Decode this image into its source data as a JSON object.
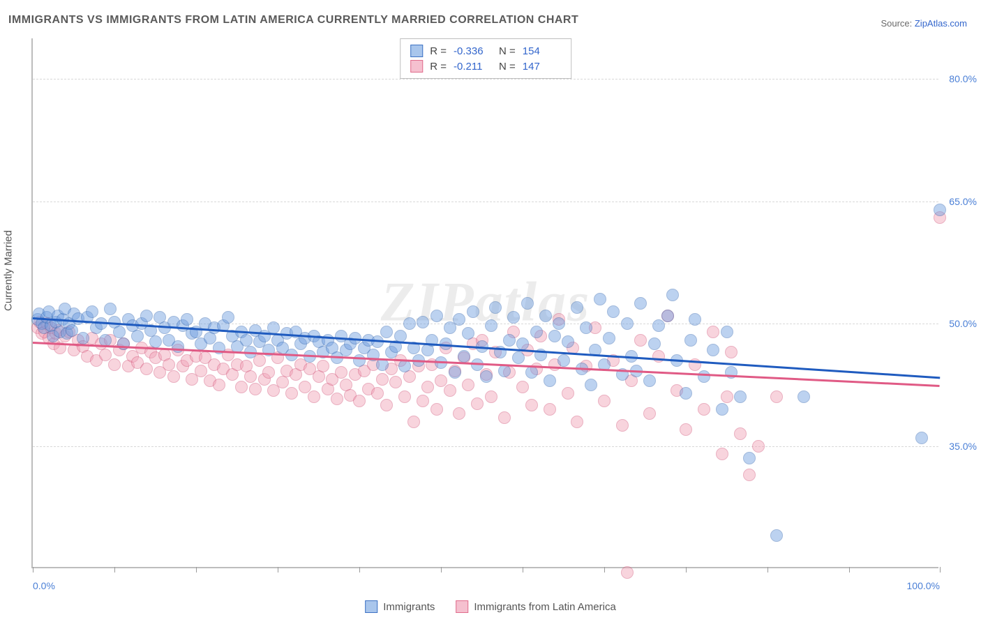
{
  "title": "IMMIGRANTS VS IMMIGRANTS FROM LATIN AMERICA CURRENTLY MARRIED CORRELATION CHART",
  "source_prefix": "Source: ",
  "source_name": "ZipAtlas.com",
  "watermark": "ZIPatlas",
  "yaxis_title": "Currently Married",
  "chart": {
    "type": "scatter",
    "xlim": [
      0,
      100
    ],
    "ylim": [
      20,
      85
    ],
    "xtick_positions": [
      0,
      9,
      18,
      27,
      36,
      45,
      54,
      63,
      72,
      81,
      90,
      100
    ],
    "xtick_labels": {
      "0": "0.0%",
      "100": "100.0%"
    },
    "ytick_positions": [
      35,
      50,
      65,
      80
    ],
    "ytick_labels": {
      "35": "35.0%",
      "50": "50.0%",
      "65": "65.0%",
      "80": "80.0%"
    },
    "grid_color": "#d8d8d8",
    "axis_tick_label_color": "#4a7fd6",
    "background_color": "#ffffff",
    "point_radius": 9,
    "point_opacity": 0.45
  },
  "series": [
    {
      "name": "Immigrants",
      "fill_color": "#6d9de0",
      "stroke_color": "#2e64b0",
      "legend_swatch_fill": "#a9c6ec",
      "legend_swatch_border": "#3d72c4",
      "trend": {
        "x1": 0,
        "y1": 50.8,
        "x2": 100,
        "y2": 43.5,
        "color": "#1f5bbf",
        "width": 2.5
      },
      "R": "-0.336",
      "N": "154",
      "points": [
        [
          0.5,
          50.5
        ],
        [
          0.7,
          51.2
        ],
        [
          1,
          50.0
        ],
        [
          1.2,
          49.5
        ],
        [
          1.5,
          50.8
        ],
        [
          1.8,
          51.5
        ],
        [
          2,
          49.8
        ],
        [
          2.2,
          48.5
        ],
        [
          2.5,
          50.2
        ],
        [
          2.8,
          51.0
        ],
        [
          3,
          49.0
        ],
        [
          3.3,
          50.5
        ],
        [
          3.5,
          51.8
        ],
        [
          3.8,
          48.8
        ],
        [
          4,
          50.0
        ],
        [
          4.3,
          49.2
        ],
        [
          4.5,
          51.2
        ],
        [
          5,
          50.6
        ],
        [
          5.5,
          48.2
        ],
        [
          6,
          50.8
        ],
        [
          6.5,
          51.5
        ],
        [
          7,
          49.5
        ],
        [
          7.5,
          50.0
        ],
        [
          8,
          48.0
        ],
        [
          8.5,
          51.8
        ],
        [
          9,
          50.2
        ],
        [
          9.5,
          49.0
        ],
        [
          10,
          47.5
        ],
        [
          10.5,
          50.5
        ],
        [
          11,
          49.8
        ],
        [
          11.5,
          48.5
        ],
        [
          12,
          50.0
        ],
        [
          12.5,
          51.0
        ],
        [
          13,
          49.2
        ],
        [
          13.5,
          47.8
        ],
        [
          14,
          50.8
        ],
        [
          14.5,
          49.5
        ],
        [
          15,
          48.0
        ],
        [
          15.5,
          50.2
        ],
        [
          16,
          47.2
        ],
        [
          16.5,
          49.8
        ],
        [
          17,
          50.5
        ],
        [
          17.5,
          48.8
        ],
        [
          18,
          49.0
        ],
        [
          18.5,
          47.5
        ],
        [
          19,
          50.0
        ],
        [
          19.5,
          48.2
        ],
        [
          20,
          49.5
        ],
        [
          20.5,
          47.0
        ],
        [
          21,
          49.8
        ],
        [
          21.5,
          50.8
        ],
        [
          22,
          48.5
        ],
        [
          22.5,
          47.2
        ],
        [
          23,
          49.0
        ],
        [
          23.5,
          48.0
        ],
        [
          24,
          46.5
        ],
        [
          24.5,
          49.2
        ],
        [
          25,
          47.8
        ],
        [
          25.5,
          48.5
        ],
        [
          26,
          46.8
        ],
        [
          26.5,
          49.5
        ],
        [
          27,
          48.0
        ],
        [
          27.5,
          47.0
        ],
        [
          28,
          48.8
        ],
        [
          28.5,
          46.2
        ],
        [
          29,
          49.0
        ],
        [
          29.5,
          47.5
        ],
        [
          30,
          48.2
        ],
        [
          30.5,
          46.0
        ],
        [
          31,
          48.5
        ],
        [
          31.5,
          47.8
        ],
        [
          32,
          46.5
        ],
        [
          32.5,
          48.0
        ],
        [
          33,
          47.0
        ],
        [
          33.5,
          45.8
        ],
        [
          34,
          48.5
        ],
        [
          34.5,
          46.8
        ],
        [
          35,
          47.5
        ],
        [
          35.5,
          48.2
        ],
        [
          36,
          45.5
        ],
        [
          36.5,
          47.0
        ],
        [
          37,
          48.0
        ],
        [
          37.5,
          46.2
        ],
        [
          38,
          47.8
        ],
        [
          38.5,
          45.0
        ],
        [
          39,
          49.0
        ],
        [
          39.5,
          46.5
        ],
        [
          40,
          47.2
        ],
        [
          40.5,
          48.5
        ],
        [
          41,
          44.8
        ],
        [
          41.5,
          50.0
        ],
        [
          42,
          47.0
        ],
        [
          42.5,
          45.5
        ],
        [
          43,
          50.2
        ],
        [
          43.5,
          46.8
        ],
        [
          44,
          48.0
        ],
        [
          44.5,
          51.0
        ],
        [
          45,
          45.2
        ],
        [
          45.5,
          47.5
        ],
        [
          46,
          49.5
        ],
        [
          46.5,
          44.0
        ],
        [
          47,
          50.5
        ],
        [
          47.5,
          46.0
        ],
        [
          48,
          48.8
        ],
        [
          48.5,
          51.5
        ],
        [
          49,
          45.0
        ],
        [
          49.5,
          47.2
        ],
        [
          50,
          43.5
        ],
        [
          50.5,
          49.8
        ],
        [
          51,
          52.0
        ],
        [
          51.5,
          46.5
        ],
        [
          52,
          44.2
        ],
        [
          52.5,
          48.0
        ],
        [
          53,
          50.8
        ],
        [
          53.5,
          45.8
        ],
        [
          54,
          47.5
        ],
        [
          54.5,
          52.5
        ],
        [
          55,
          44.0
        ],
        [
          55.5,
          49.0
        ],
        [
          56,
          46.2
        ],
        [
          56.5,
          51.0
        ],
        [
          57,
          43.0
        ],
        [
          57.5,
          48.5
        ],
        [
          58,
          50.0
        ],
        [
          58.5,
          45.5
        ],
        [
          59,
          47.8
        ],
        [
          60,
          52.0
        ],
        [
          60.5,
          44.5
        ],
        [
          61,
          49.5
        ],
        [
          61.5,
          42.5
        ],
        [
          62,
          46.8
        ],
        [
          62.5,
          53.0
        ],
        [
          63,
          45.0
        ],
        [
          63.5,
          48.2
        ],
        [
          64,
          51.5
        ],
        [
          65,
          43.8
        ],
        [
          65.5,
          50.0
        ],
        [
          66,
          46.0
        ],
        [
          66.5,
          44.2
        ],
        [
          67,
          52.5
        ],
        [
          68,
          43.0
        ],
        [
          68.5,
          47.5
        ],
        [
          69,
          49.8
        ],
        [
          70,
          51.0
        ],
        [
          70.5,
          53.5
        ],
        [
          71,
          45.5
        ],
        [
          72,
          41.5
        ],
        [
          72.5,
          48.0
        ],
        [
          73,
          50.5
        ],
        [
          74,
          43.5
        ],
        [
          75,
          46.8
        ],
        [
          76,
          39.5
        ],
        [
          76.5,
          49.0
        ],
        [
          77,
          44.0
        ],
        [
          78,
          41.0
        ],
        [
          79,
          33.5
        ],
        [
          82,
          24.0
        ],
        [
          85,
          41.0
        ],
        [
          98,
          36.0
        ],
        [
          100,
          64.0
        ]
      ]
    },
    {
      "name": "Immigrants from Latin America",
      "fill_color": "#f1a1b6",
      "stroke_color": "#d15075",
      "legend_swatch_fill": "#f5c0cf",
      "legend_swatch_border": "#e06c8c",
      "trend": {
        "x1": 0,
        "y1": 47.8,
        "x2": 100,
        "y2": 42.5,
        "color": "#e05a85",
        "width": 2.5
      },
      "R": "-0.211",
      "N": "147",
      "points": [
        [
          0.5,
          49.5
        ],
        [
          0.8,
          50.2
        ],
        [
          1,
          48.8
        ],
        [
          1.3,
          49.0
        ],
        [
          1.5,
          50.0
        ],
        [
          1.8,
          48.2
        ],
        [
          2,
          49.5
        ],
        [
          2.3,
          47.5
        ],
        [
          2.5,
          48.8
        ],
        [
          2.8,
          49.2
        ],
        [
          3,
          47.0
        ],
        [
          3.5,
          48.5
        ],
        [
          4,
          49.0
        ],
        [
          4.5,
          46.8
        ],
        [
          5,
          48.0
        ],
        [
          5.5,
          47.2
        ],
        [
          6,
          46.0
        ],
        [
          6.5,
          48.2
        ],
        [
          7,
          45.5
        ],
        [
          7.5,
          47.5
        ],
        [
          8,
          46.2
        ],
        [
          8.5,
          48.0
        ],
        [
          9,
          45.0
        ],
        [
          9.5,
          46.8
        ],
        [
          10,
          47.5
        ],
        [
          10.5,
          44.8
        ],
        [
          11,
          46.0
        ],
        [
          11.5,
          45.2
        ],
        [
          12,
          47.0
        ],
        [
          12.5,
          44.5
        ],
        [
          13,
          46.5
        ],
        [
          13.5,
          45.8
        ],
        [
          14,
          44.0
        ],
        [
          14.5,
          46.2
        ],
        [
          15,
          45.0
        ],
        [
          15.5,
          43.5
        ],
        [
          16,
          46.8
        ],
        [
          16.5,
          44.8
        ],
        [
          17,
          45.5
        ],
        [
          17.5,
          43.2
        ],
        [
          18,
          46.0
        ],
        [
          18.5,
          44.2
        ],
        [
          19,
          45.8
        ],
        [
          19.5,
          43.0
        ],
        [
          20,
          45.0
        ],
        [
          20.5,
          42.5
        ],
        [
          21,
          44.5
        ],
        [
          21.5,
          46.2
        ],
        [
          22,
          43.8
        ],
        [
          22.5,
          45.0
        ],
        [
          23,
          42.2
        ],
        [
          23.5,
          44.8
        ],
        [
          24,
          43.5
        ],
        [
          24.5,
          42.0
        ],
        [
          25,
          45.5
        ],
        [
          25.5,
          43.2
        ],
        [
          26,
          44.0
        ],
        [
          26.5,
          41.8
        ],
        [
          27,
          45.8
        ],
        [
          27.5,
          42.8
        ],
        [
          28,
          44.2
        ],
        [
          28.5,
          41.5
        ],
        [
          29,
          43.8
        ],
        [
          29.5,
          45.0
        ],
        [
          30,
          42.2
        ],
        [
          30.5,
          44.5
        ],
        [
          31,
          41.0
        ],
        [
          31.5,
          43.5
        ],
        [
          32,
          44.8
        ],
        [
          32.5,
          42.0
        ],
        [
          33,
          43.2
        ],
        [
          33.5,
          40.8
        ],
        [
          34,
          44.0
        ],
        [
          34.5,
          42.5
        ],
        [
          35,
          41.2
        ],
        [
          35.5,
          43.8
        ],
        [
          36,
          40.5
        ],
        [
          36.5,
          44.2
        ],
        [
          37,
          42.0
        ],
        [
          37.5,
          45.0
        ],
        [
          38,
          41.5
        ],
        [
          38.5,
          43.2
        ],
        [
          39,
          40.0
        ],
        [
          39.5,
          44.5
        ],
        [
          40,
          42.8
        ],
        [
          40.5,
          45.5
        ],
        [
          41,
          41.0
        ],
        [
          41.5,
          43.5
        ],
        [
          42,
          38.0
        ],
        [
          42.5,
          44.8
        ],
        [
          43,
          40.5
        ],
        [
          43.5,
          42.2
        ],
        [
          44,
          45.0
        ],
        [
          44.5,
          39.5
        ],
        [
          45,
          43.0
        ],
        [
          45.5,
          47.0
        ],
        [
          46,
          41.8
        ],
        [
          46.5,
          44.2
        ],
        [
          47,
          39.0
        ],
        [
          47.5,
          45.8
        ],
        [
          48,
          42.5
        ],
        [
          48.5,
          47.5
        ],
        [
          49,
          40.2
        ],
        [
          49.5,
          48.0
        ],
        [
          50,
          43.8
        ],
        [
          50.5,
          41.0
        ],
        [
          51,
          46.5
        ],
        [
          52,
          38.5
        ],
        [
          52.5,
          44.0
        ],
        [
          53,
          49.0
        ],
        [
          54,
          42.2
        ],
        [
          54.5,
          46.8
        ],
        [
          55,
          40.0
        ],
        [
          55.5,
          44.5
        ],
        [
          56,
          48.5
        ],
        [
          57,
          39.5
        ],
        [
          57.5,
          45.0
        ],
        [
          58,
          50.5
        ],
        [
          59,
          41.5
        ],
        [
          59.5,
          47.0
        ],
        [
          60,
          38.0
        ],
        [
          61,
          44.8
        ],
        [
          62,
          49.5
        ],
        [
          63,
          40.5
        ],
        [
          64,
          45.5
        ],
        [
          65,
          37.5
        ],
        [
          65.5,
          19.5
        ],
        [
          66,
          43.0
        ],
        [
          67,
          48.0
        ],
        [
          68,
          39.0
        ],
        [
          69,
          46.0
        ],
        [
          70,
          51.0
        ],
        [
          71,
          41.8
        ],
        [
          72,
          37.0
        ],
        [
          73,
          45.0
        ],
        [
          74,
          39.5
        ],
        [
          75,
          49.0
        ],
        [
          76,
          34.0
        ],
        [
          76.5,
          41.0
        ],
        [
          77,
          46.5
        ],
        [
          78,
          36.5
        ],
        [
          79,
          31.5
        ],
        [
          80,
          35.0
        ],
        [
          82,
          41.0
        ],
        [
          100,
          63.0
        ]
      ]
    }
  ],
  "bottom_legend": [
    {
      "label": "Immigrants",
      "fill": "#a9c6ec",
      "border": "#3d72c4"
    },
    {
      "label": "Immigrants from Latin America",
      "fill": "#f5c0cf",
      "border": "#e06c8c"
    }
  ]
}
